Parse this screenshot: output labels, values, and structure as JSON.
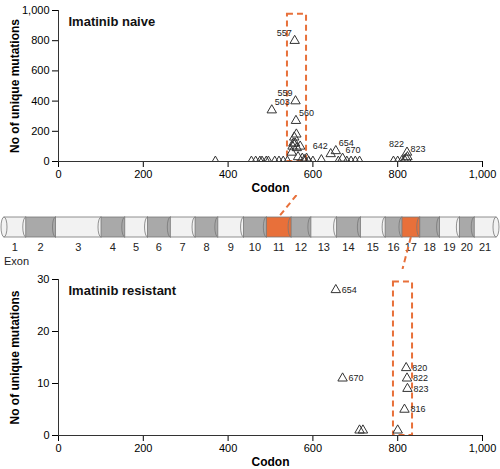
{
  "chart_data": [
    {
      "type": "scatter",
      "title": "Imatinib naive",
      "xlabel": "Codon",
      "ylabel": "No of unique mutations",
      "marker": "triangle",
      "color": "#333333",
      "x": [
        370,
        455,
        465,
        475,
        480,
        490,
        495,
        503,
        510,
        520,
        530,
        540,
        550,
        552,
        554,
        556,
        557,
        558,
        559,
        560,
        561,
        562,
        565,
        570,
        575,
        580,
        585,
        590,
        600,
        620,
        642,
        654,
        660,
        670,
        680,
        690,
        700,
        710,
        790,
        800,
        810,
        816,
        820,
        822,
        823
      ],
      "values": [
        0,
        0,
        0,
        0,
        0,
        0,
        0,
        340,
        0,
        0,
        0,
        0,
        60,
        100,
        120,
        160,
        800,
        120,
        400,
        270,
        180,
        90,
        30,
        100,
        20,
        10,
        20,
        0,
        0,
        10,
        50,
        70,
        0,
        20,
        0,
        0,
        0,
        0,
        0,
        0,
        5,
        10,
        20,
        60,
        30
      ],
      "point_labels": [
        null,
        null,
        null,
        null,
        null,
        null,
        null,
        "503",
        null,
        null,
        null,
        null,
        null,
        null,
        null,
        null,
        "557",
        null,
        "559",
        "560",
        null,
        null,
        null,
        null,
        null,
        null,
        null,
        null,
        null,
        null,
        "642",
        "654",
        null,
        "670",
        null,
        null,
        null,
        null,
        null,
        null,
        null,
        null,
        null,
        "822",
        "823"
      ],
      "xlim": [
        0,
        1000
      ],
      "xticks": [
        0,
        200,
        400,
        600,
        800,
        1000
      ],
      "ylim": [
        0,
        1000
      ],
      "yticks": [
        0,
        200,
        400,
        600,
        800,
        1000
      ],
      "highlight": {
        "x": [
          540,
          585
        ],
        "y": [
          0,
          975
        ],
        "color": "#e8703a"
      }
    },
    {
      "type": "scatter",
      "title": "Imatinib resistant",
      "xlabel": "Codon",
      "ylabel": "No of unique mutations",
      "marker": "triangle",
      "color": "#333333",
      "x": [
        654,
        670,
        710,
        718,
        800,
        816,
        820,
        822,
        823
      ],
      "values": [
        28,
        11,
        1,
        1,
        1,
        5,
        13,
        11,
        9
      ],
      "point_labels": [
        "654",
        "670",
        null,
        null,
        null,
        "816",
        "820",
        "822",
        "823"
      ],
      "xlim": [
        0,
        1000
      ],
      "xticks": [
        0,
        200,
        400,
        600,
        800,
        1000
      ],
      "ylim": [
        0,
        30
      ],
      "yticks": [
        0,
        10,
        20,
        30
      ],
      "highlight": {
        "x": [
          790,
          835
        ],
        "y": [
          0,
          29.5
        ],
        "color": "#e8703a"
      }
    }
  ],
  "exon_map": {
    "label": "Exon",
    "exons": [
      "1",
      "2",
      "3",
      "4",
      "5",
      "6",
      "7",
      "8",
      "9",
      "10",
      "11",
      "12",
      "13",
      "14",
      "15",
      "16",
      "17",
      "18",
      "19",
      "20",
      "21"
    ],
    "highlighted": [
      "11",
      "17"
    ],
    "color": "#e8703a"
  }
}
